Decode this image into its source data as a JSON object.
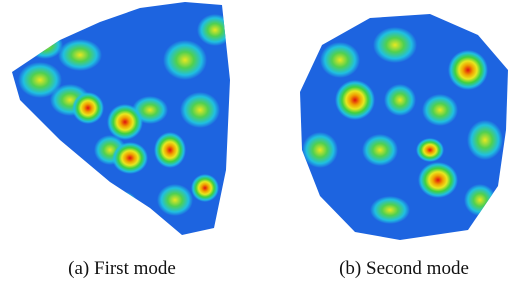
{
  "panels": [
    {
      "caption": "(a) First mode"
    },
    {
      "caption": "(b) Second mode"
    }
  ]
}
